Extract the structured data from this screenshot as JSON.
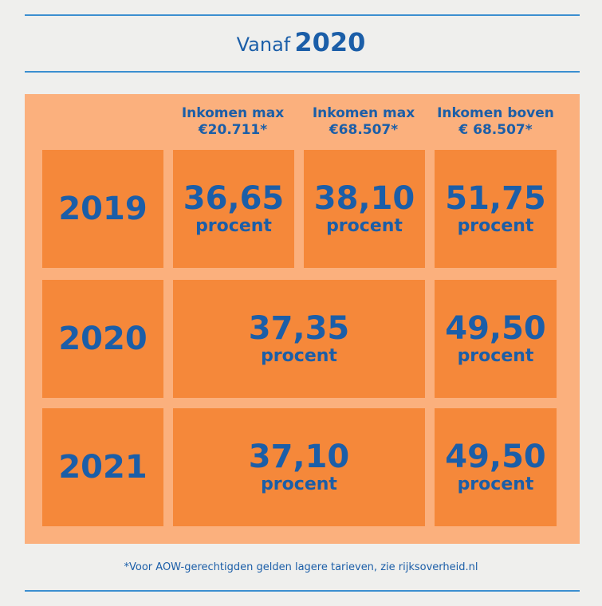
{
  "header": {
    "prefix": "Vanaf",
    "year": "2020"
  },
  "columns": [
    {
      "line1": "Inkomen max",
      "line2": "€20.711*"
    },
    {
      "line1": "Inkomen max",
      "line2": "€68.507*"
    },
    {
      "line1": "Inkomen boven",
      "line2": "€ 68.507*"
    }
  ],
  "rows": [
    {
      "year": "2019",
      "cells": [
        {
          "value": "36,65",
          "unit": "procent"
        },
        {
          "value": "38,10",
          "unit": "procent"
        },
        {
          "value": "51,75",
          "unit": "procent"
        }
      ]
    },
    {
      "year": "2020",
      "cells": [
        {
          "value": "37,35",
          "unit": "procent"
        },
        {
          "value": "49,50",
          "unit": "procent"
        }
      ]
    },
    {
      "year": "2021",
      "cells": [
        {
          "value": "37,10",
          "unit": "procent"
        },
        {
          "value": "49,50",
          "unit": "procent"
        }
      ]
    }
  ],
  "footnote": "*Voor AOW-gerechtigden gelden lagere tarieven, zie rijksoverheid.nl"
}
